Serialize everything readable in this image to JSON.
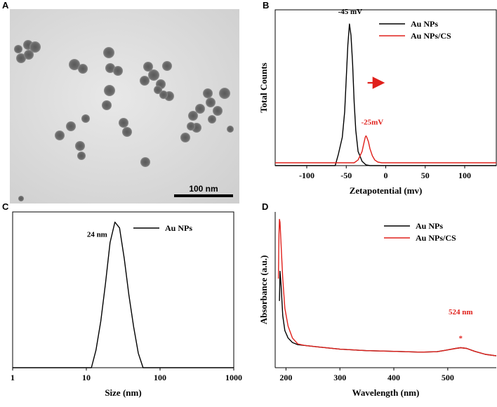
{
  "panels": {
    "A": {
      "label": "A",
      "scale_bar_text": "100 nm"
    }
  },
  "chart_data": [
    {
      "panel": "B",
      "type": "line",
      "xlabel": "Zetapotential (mv)",
      "ylabel": "Total Counts",
      "xlim": [
        -140,
        140
      ],
      "ylim": [
        0,
        1.1
      ],
      "xticks": [
        -100,
        -50,
        0,
        50,
        100
      ],
      "tick_labels": [
        "-100",
        "-50",
        "0",
        "50",
        "100"
      ],
      "legend": [
        "Au NPs",
        "Au NPs/CS"
      ],
      "colors": [
        "#000000",
        "#e0201b"
      ],
      "series": [
        {
          "name": "Au NPs",
          "x": [
            -140,
            -64,
            -60,
            -55,
            -52,
            -50,
            -48,
            -46,
            -44,
            -42,
            -40,
            -38,
            -35,
            -30,
            -25,
            -20,
            0,
            140
          ],
          "y": [
            0,
            0,
            0.08,
            0.2,
            0.38,
            0.62,
            0.85,
            1.0,
            0.92,
            0.72,
            0.45,
            0.25,
            0.1,
            0.03,
            0.005,
            0,
            0,
            0
          ]
        },
        {
          "name": "Au NPs/CS",
          "x": [
            -140,
            -40,
            -35,
            -30,
            -28,
            -26,
            -25,
            -24,
            -22,
            -20,
            -17,
            -14,
            -10,
            -5,
            0,
            140
          ],
          "y": [
            0.02,
            0.02,
            0.04,
            0.1,
            0.15,
            0.2,
            0.21,
            0.2,
            0.17,
            0.12,
            0.07,
            0.04,
            0.025,
            0.02,
            0.02,
            0.02
          ]
        }
      ],
      "annotations": [
        {
          "text": "-45 mV",
          "color": "#000000",
          "x": -45,
          "y": 1.07
        },
        {
          "text": "-25mV",
          "color": "#e0201b",
          "x": -17,
          "y": 0.29
        }
      ]
    },
    {
      "panel": "C",
      "type": "line",
      "xlabel": "Size (nm)",
      "ylabel": "",
      "xscale": "log",
      "xlim": [
        1,
        1000
      ],
      "ylim": [
        0,
        1.07
      ],
      "xticks": [
        1,
        10,
        100,
        1000
      ],
      "tick_labels": [
        "1",
        "10",
        "100",
        "1000"
      ],
      "legend": [
        "Au NPs"
      ],
      "colors": [
        "#000000"
      ],
      "series": [
        {
          "name": "Au NPs",
          "x": [
            1,
            11.7,
            13.5,
            15.7,
            18.2,
            21,
            24.4,
            28.2,
            32.7,
            37.8,
            43.8,
            50.7,
            58.8,
            1000
          ],
          "y": [
            0,
            0,
            0.12,
            0.32,
            0.58,
            0.86,
            1.0,
            0.96,
            0.75,
            0.5,
            0.28,
            0.1,
            0,
            0
          ]
        }
      ],
      "annotations": [
        {
          "text": "24 nm",
          "color": "#000000",
          "x": 14,
          "y": 0.9
        }
      ]
    },
    {
      "panel": "D",
      "type": "line",
      "xlabel": "Wavelength (nm)",
      "ylabel": "Absorbance (a.u.)",
      "xlim": [
        180,
        590
      ],
      "ylim": [
        0,
        1.05
      ],
      "xticks": [
        200,
        300,
        400,
        500
      ],
      "tick_labels": [
        "200",
        "300",
        "400",
        "500"
      ],
      "legend": [
        "Au NPs",
        "Au NPs/CS"
      ],
      "colors": [
        "#000000",
        "#e0201b"
      ],
      "series": [
        {
          "name": "Au NPs",
          "x": [
            188,
            189,
            191,
            194,
            198,
            204,
            212,
            222,
            235,
            260,
            300,
            350,
            400,
            450,
            480,
            500,
            515,
            524,
            535,
            550,
            570,
            590
          ],
          "y": [
            0.45,
            0.65,
            0.55,
            0.35,
            0.25,
            0.2,
            0.17,
            0.155,
            0.15,
            0.14,
            0.125,
            0.115,
            0.11,
            0.105,
            0.108,
            0.12,
            0.13,
            0.135,
            0.13,
            0.11,
            0.09,
            0.08
          ]
        },
        {
          "name": "Au NPs/CS",
          "x": [
            186,
            187,
            188,
            189,
            191,
            194,
            198,
            204,
            212,
            222,
            235,
            260,
            300,
            350,
            400,
            450,
            480,
            500,
            515,
            524,
            535,
            550,
            570,
            590
          ],
          "y": [
            0.6,
            0.9,
            1.0,
            0.98,
            0.82,
            0.6,
            0.4,
            0.28,
            0.2,
            0.16,
            0.15,
            0.14,
            0.125,
            0.115,
            0.11,
            0.105,
            0.108,
            0.12,
            0.13,
            0.135,
            0.13,
            0.11,
            0.09,
            0.08
          ]
        }
      ],
      "annotations": [
        {
          "text": "524 nm",
          "color": "#e0201b",
          "x": 524,
          "y": 0.36
        },
        {
          "text": "*",
          "color": "#e0201b",
          "x": 524,
          "y": 0.2
        }
      ]
    }
  ]
}
